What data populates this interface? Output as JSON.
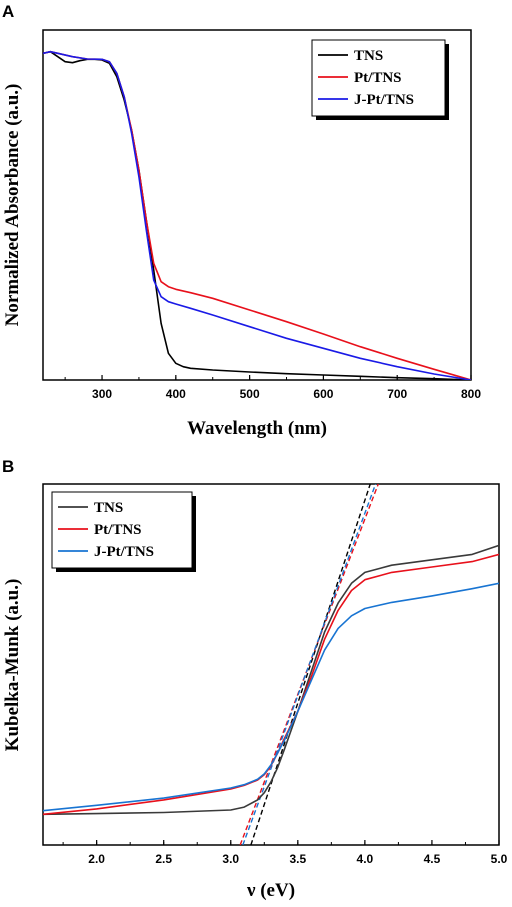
{
  "chart_data": [
    {
      "panel": "A",
      "type": "line",
      "xlabel": "Wavelength (nm)",
      "ylabel": "Normalized Absorbance (a.u.)",
      "xlim": [
        220,
        800
      ],
      "ylim": [
        0,
        1.05
      ],
      "xticks": [
        300,
        400,
        500,
        600,
        700,
        800
      ],
      "yticks_shown": false,
      "legend_position": "top-right",
      "series": [
        {
          "name": "TNS",
          "color": "#000000",
          "x": [
            220,
            230,
            240,
            250,
            260,
            270,
            280,
            290,
            300,
            310,
            320,
            330,
            340,
            350,
            360,
            370,
            380,
            390,
            400,
            410,
            420,
            450,
            500,
            550,
            600,
            650,
            700,
            750,
            800
          ],
          "y": [
            0.98,
            0.985,
            0.97,
            0.955,
            0.952,
            0.958,
            0.962,
            0.962,
            0.96,
            0.95,
            0.91,
            0.84,
            0.75,
            0.63,
            0.48,
            0.33,
            0.17,
            0.08,
            0.05,
            0.04,
            0.035,
            0.03,
            0.024,
            0.019,
            0.015,
            0.011,
            0.007,
            0.004,
            0.0
          ]
        },
        {
          "name": "Pt/TNS",
          "color": "#e8101b",
          "x": [
            220,
            230,
            240,
            260,
            280,
            300,
            310,
            320,
            330,
            340,
            350,
            360,
            370,
            380,
            390,
            400,
            420,
            450,
            500,
            550,
            600,
            650,
            700,
            750,
            800
          ],
          "y": [
            0.98,
            0.985,
            0.98,
            0.97,
            0.963,
            0.962,
            0.955,
            0.92,
            0.85,
            0.75,
            0.63,
            0.48,
            0.35,
            0.295,
            0.28,
            0.272,
            0.262,
            0.245,
            0.21,
            0.175,
            0.138,
            0.1,
            0.065,
            0.032,
            0.0
          ]
        },
        {
          "name": "J-Pt/TNS",
          "color": "#1a1ae6",
          "x": [
            220,
            230,
            240,
            260,
            280,
            300,
            310,
            320,
            330,
            340,
            350,
            360,
            370,
            380,
            390,
            400,
            420,
            450,
            500,
            550,
            600,
            650,
            700,
            750,
            800
          ],
          "y": [
            0.98,
            0.985,
            0.98,
            0.97,
            0.963,
            0.962,
            0.955,
            0.92,
            0.85,
            0.74,
            0.61,
            0.45,
            0.3,
            0.25,
            0.235,
            0.228,
            0.215,
            0.195,
            0.16,
            0.125,
            0.095,
            0.065,
            0.04,
            0.018,
            0.0
          ]
        }
      ]
    },
    {
      "panel": "B",
      "type": "line",
      "xlabel": "ν (eV)",
      "ylabel": "Kubelka-Munk (a.u.)",
      "xlim": [
        1.6,
        5.0
      ],
      "ylim": [
        0,
        1.0
      ],
      "xticks": [
        2.0,
        2.5,
        3.0,
        3.5,
        4.0,
        4.5,
        5.0
      ],
      "xtick_labels": [
        "2.0",
        "2.5",
        "3.0",
        "3.5",
        "4.0",
        "4.5",
        "5.0"
      ],
      "yticks_shown": false,
      "legend_position": "top-left",
      "series": [
        {
          "name": "TNS",
          "color": "#3a3a3a",
          "x": [
            1.6,
            2.0,
            2.5,
            3.0,
            3.1,
            3.2,
            3.25,
            3.3,
            3.35,
            3.4,
            3.5,
            3.6,
            3.7,
            3.8,
            3.9,
            4.0,
            4.2,
            4.5,
            4.8,
            5.0
          ],
          "y": [
            0.085,
            0.087,
            0.09,
            0.097,
            0.105,
            0.125,
            0.145,
            0.175,
            0.215,
            0.265,
            0.37,
            0.48,
            0.59,
            0.67,
            0.725,
            0.755,
            0.775,
            0.79,
            0.805,
            0.83
          ]
        },
        {
          "name": "Pt/TNS",
          "color": "#e8101b",
          "x": [
            1.6,
            2.0,
            2.5,
            3.0,
            3.1,
            3.2,
            3.25,
            3.3,
            3.35,
            3.4,
            3.5,
            3.6,
            3.7,
            3.8,
            3.9,
            4.0,
            4.2,
            4.5,
            4.8,
            5.0
          ],
          "y": [
            0.085,
            0.1,
            0.125,
            0.155,
            0.165,
            0.18,
            0.195,
            0.22,
            0.255,
            0.295,
            0.37,
            0.465,
            0.57,
            0.65,
            0.705,
            0.735,
            0.755,
            0.77,
            0.785,
            0.805
          ]
        },
        {
          "name": "J-Pt/TNS",
          "color": "#1874d2",
          "x": [
            1.6,
            2.0,
            2.5,
            3.0,
            3.1,
            3.2,
            3.25,
            3.3,
            3.35,
            3.4,
            3.5,
            3.6,
            3.7,
            3.8,
            3.9,
            4.0,
            4.2,
            4.5,
            4.8,
            5.0
          ],
          "y": [
            0.095,
            0.11,
            0.13,
            0.158,
            0.167,
            0.182,
            0.197,
            0.222,
            0.255,
            0.29,
            0.37,
            0.455,
            0.54,
            0.6,
            0.635,
            0.655,
            0.672,
            0.69,
            0.71,
            0.725
          ]
        }
      ],
      "fit_lines": [
        {
          "color": "#000000",
          "style": "dashed",
          "x": [
            3.15,
            4.04
          ],
          "y": [
            0.0,
            1.0
          ]
        },
        {
          "color": "#e8101b",
          "style": "dashed",
          "x": [
            3.07,
            4.1
          ],
          "y": [
            0.0,
            1.0
          ]
        },
        {
          "color": "#1874d2",
          "style": "dashed",
          "x": [
            3.09,
            4.08
          ],
          "y": [
            0.0,
            1.0
          ]
        }
      ]
    }
  ]
}
